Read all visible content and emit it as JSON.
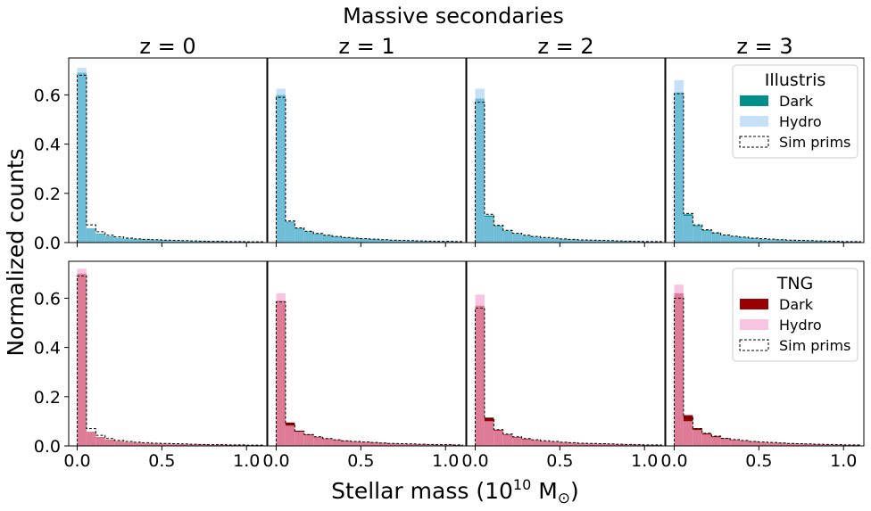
{
  "figure": {
    "title": "Massive secondaries",
    "xlabel": "Stellar mass (10",
    "xlabel_exp": "10",
    "xlabel_unit": " M",
    "xlabel_sub": "⊙",
    "xlabel_close": ")",
    "ylabel": "Normalized counts",
    "column_titles": [
      "z = 0",
      "z = 1",
      "z = 2",
      "z = 3"
    ]
  },
  "chart_data": {
    "type": "bar",
    "subtype": "histogram-grid",
    "xlim": [
      -0.05,
      1.12
    ],
    "ylim": [
      0,
      0.75
    ],
    "xticks": [
      0.0,
      0.5,
      1.0
    ],
    "xtick_labels": [
      "0.0",
      "0.5",
      "1.0"
    ],
    "yticks": [
      0.0,
      0.2,
      0.4,
      0.6
    ],
    "ytick_labels": [
      "0.0",
      "0.2",
      "0.4",
      "0.6"
    ],
    "bin_edges": [
      0.0,
      0.055,
      0.11,
      0.165,
      0.22,
      0.275,
      0.33,
      0.385,
      0.44,
      0.495,
      0.55,
      0.605,
      0.66,
      0.715,
      0.77,
      0.825,
      0.88,
      0.935,
      0.99,
      1.045,
      1.1
    ],
    "grid": false,
    "rows": [
      {
        "legend_title": "Illustris",
        "legend_position": "top-right",
        "colors": {
          "dark": "#008f8a",
          "hydro": "#c6e0f7",
          "overlap": "#6fbdd6",
          "sim": "#000000"
        },
        "legend": [
          {
            "label": "Dark",
            "style": "filled",
            "color": "#008f8a"
          },
          {
            "label": "Hydro",
            "style": "filled",
            "color": "#c6e0f7"
          },
          {
            "label": "Sim prims",
            "style": "dashed",
            "color": "#000000"
          }
        ],
        "panels": [
          {
            "dark": [
              0.69,
              0.058,
              0.036,
              0.026,
              0.02,
              0.016,
              0.014,
              0.012,
              0.011,
              0.01,
              0.008,
              0.007,
              0.006,
              0.006,
              0.005,
              0.005,
              0.004,
              0.004,
              0.003,
              0.003
            ],
            "hydro": [
              0.71,
              0.058,
              0.034,
              0.024,
              0.019,
              0.015,
              0.013,
              0.011,
              0.01,
              0.009,
              0.008,
              0.007,
              0.006,
              0.005,
              0.005,
              0.004,
              0.004,
              0.003,
              0.003,
              0.003
            ],
            "sim": [
              0.68,
              0.072,
              0.044,
              0.03,
              0.023,
              0.018,
              0.015,
              0.013,
              0.012,
              0.01,
              0.009,
              0.008,
              0.007,
              0.006,
              0.005,
              0.005,
              0.004,
              0.004,
              0.003,
              0.003
            ]
          },
          {
            "dark": [
              0.6,
              0.085,
              0.058,
              0.045,
              0.036,
              0.03,
              0.025,
              0.021,
              0.018,
              0.016,
              0.014,
              0.012,
              0.01,
              0.009,
              0.008,
              0.007,
              0.006,
              0.005,
              0.005,
              0.004
            ],
            "hydro": [
              0.625,
              0.082,
              0.056,
              0.043,
              0.034,
              0.028,
              0.024,
              0.02,
              0.017,
              0.015,
              0.013,
              0.011,
              0.01,
              0.009,
              0.008,
              0.007,
              0.006,
              0.005,
              0.004,
              0.004
            ],
            "sim": [
              0.59,
              0.088,
              0.06,
              0.046,
              0.037,
              0.03,
              0.025,
              0.021,
              0.018,
              0.016,
              0.014,
              0.012,
              0.01,
              0.009,
              0.008,
              0.007,
              0.006,
              0.005,
              0.005,
              0.004
            ]
          },
          {
            "dark": [
              0.585,
              0.11,
              0.068,
              0.048,
              0.036,
              0.029,
              0.024,
              0.02,
              0.017,
              0.015,
              0.013,
              0.011,
              0.01,
              0.009,
              0.008,
              0.007,
              0.006,
              0.005,
              0.004,
              0.004
            ],
            "hydro": [
              0.625,
              0.105,
              0.065,
              0.046,
              0.035,
              0.028,
              0.023,
              0.019,
              0.016,
              0.014,
              0.012,
              0.011,
              0.01,
              0.009,
              0.008,
              0.007,
              0.006,
              0.005,
              0.004,
              0.004
            ],
            "sim": [
              0.57,
              0.115,
              0.07,
              0.05,
              0.038,
              0.03,
              0.025,
              0.021,
              0.018,
              0.015,
              0.013,
              0.011,
              0.01,
              0.009,
              0.008,
              0.007,
              0.006,
              0.005,
              0.004,
              0.004
            ]
          },
          {
            "dark": [
              0.61,
              0.115,
              0.07,
              0.05,
              0.038,
              0.03,
              0.025,
              0.021,
              0.018,
              0.015,
              0.013,
              0.012,
              0.01,
              0.009,
              0.008,
              0.007,
              0.006,
              0.005,
              0.004,
              0.004
            ],
            "hydro": [
              0.66,
              0.108,
              0.066,
              0.047,
              0.036,
              0.029,
              0.024,
              0.02,
              0.017,
              0.015,
              0.013,
              0.011,
              0.01,
              0.009,
              0.008,
              0.007,
              0.006,
              0.005,
              0.004,
              0.004
            ],
            "sim": [
              0.605,
              0.118,
              0.072,
              0.052,
              0.04,
              0.031,
              0.026,
              0.022,
              0.018,
              0.016,
              0.014,
              0.012,
              0.01,
              0.009,
              0.008,
              0.007,
              0.006,
              0.005,
              0.004,
              0.004
            ]
          }
        ]
      },
      {
        "legend_title": "TNG",
        "legend_position": "top-right",
        "colors": {
          "dark": "#990000",
          "hydro": "#f7c5e2",
          "overlap": "#de7b97",
          "sim": "#000000"
        },
        "legend": [
          {
            "label": "Dark",
            "style": "filled",
            "color": "#990000"
          },
          {
            "label": "Hydro",
            "style": "filled",
            "color": "#f7c5e2"
          },
          {
            "label": "Sim prims",
            "style": "dashed",
            "color": "#000000"
          }
        ],
        "panels": [
          {
            "dark": [
              0.7,
              0.056,
              0.035,
              0.025,
              0.019,
              0.015,
              0.013,
              0.011,
              0.01,
              0.009,
              0.008,
              0.007,
              0.006,
              0.006,
              0.005,
              0.005,
              0.004,
              0.004,
              0.003,
              0.003
            ],
            "hydro": [
              0.72,
              0.054,
              0.033,
              0.024,
              0.018,
              0.014,
              0.012,
              0.011,
              0.01,
              0.009,
              0.008,
              0.007,
              0.006,
              0.005,
              0.005,
              0.004,
              0.004,
              0.003,
              0.003,
              0.003
            ],
            "sim": [
              0.69,
              0.07,
              0.043,
              0.03,
              0.022,
              0.018,
              0.015,
              0.013,
              0.011,
              0.01,
              0.009,
              0.008,
              0.007,
              0.006,
              0.005,
              0.005,
              0.004,
              0.004,
              0.003,
              0.003
            ]
          },
          {
            "dark": [
              0.59,
              0.095,
              0.062,
              0.047,
              0.037,
              0.03,
              0.025,
              0.021,
              0.018,
              0.016,
              0.014,
              0.012,
              0.01,
              0.009,
              0.008,
              0.007,
              0.006,
              0.005,
              0.005,
              0.004
            ],
            "hydro": [
              0.62,
              0.082,
              0.057,
              0.044,
              0.035,
              0.028,
              0.024,
              0.02,
              0.017,
              0.015,
              0.013,
              0.011,
              0.01,
              0.009,
              0.008,
              0.007,
              0.006,
              0.005,
              0.004,
              0.004
            ],
            "sim": [
              0.585,
              0.09,
              0.06,
              0.046,
              0.037,
              0.03,
              0.025,
              0.021,
              0.018,
              0.016,
              0.014,
              0.012,
              0.01,
              0.009,
              0.008,
              0.007,
              0.006,
              0.005,
              0.005,
              0.004
            ]
          },
          {
            "dark": [
              0.57,
              0.115,
              0.065,
              0.047,
              0.036,
              0.029,
              0.024,
              0.02,
              0.017,
              0.015,
              0.013,
              0.011,
              0.01,
              0.009,
              0.008,
              0.007,
              0.006,
              0.005,
              0.004,
              0.004
            ],
            "hydro": [
              0.615,
              0.1,
              0.062,
              0.045,
              0.034,
              0.027,
              0.023,
              0.019,
              0.016,
              0.014,
              0.012,
              0.011,
              0.01,
              0.009,
              0.008,
              0.007,
              0.006,
              0.005,
              0.004,
              0.004
            ],
            "sim": [
              0.56,
              0.11,
              0.066,
              0.048,
              0.037,
              0.03,
              0.025,
              0.021,
              0.018,
              0.015,
              0.013,
              0.011,
              0.01,
              0.009,
              0.008,
              0.007,
              0.006,
              0.005,
              0.004,
              0.004
            ]
          },
          {
            "dark": [
              0.62,
              0.125,
              0.072,
              0.051,
              0.039,
              0.031,
              0.025,
              0.021,
              0.018,
              0.015,
              0.013,
              0.012,
              0.01,
              0.009,
              0.008,
              0.007,
              0.006,
              0.005,
              0.004,
              0.004
            ],
            "hydro": [
              0.655,
              0.1,
              0.064,
              0.046,
              0.035,
              0.028,
              0.023,
              0.02,
              0.017,
              0.015,
              0.013,
              0.011,
              0.01,
              0.009,
              0.008,
              0.007,
              0.006,
              0.005,
              0.004,
              0.004
            ],
            "sim": [
              0.6,
              0.115,
              0.07,
              0.051,
              0.04,
              0.031,
              0.026,
              0.022,
              0.018,
              0.016,
              0.014,
              0.012,
              0.01,
              0.009,
              0.008,
              0.007,
              0.006,
              0.005,
              0.004,
              0.004
            ]
          }
        ]
      }
    ]
  }
}
